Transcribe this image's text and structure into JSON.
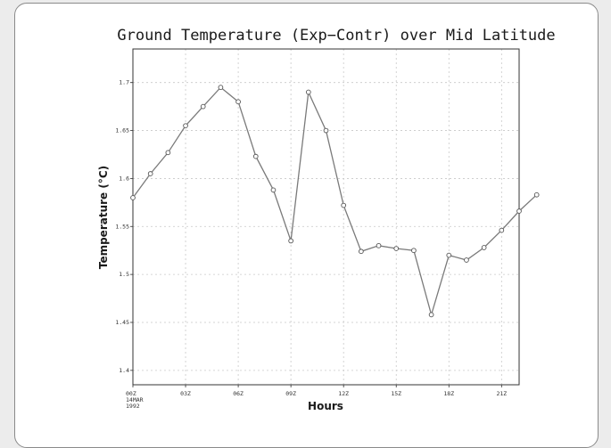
{
  "chart_data": {
    "type": "line",
    "title": "Ground Temperature (Exp−Contr) over Mid Latitude",
    "xlabel": "Hours",
    "ylabel": "Temperature (°C)",
    "x_tick_labels": [
      "00Z",
      "03Z",
      "06Z",
      "09Z",
      "12Z",
      "15Z",
      "18Z",
      "21Z"
    ],
    "x_tick_sublabels": [
      "14MAR",
      "1992"
    ],
    "y_tick_labels": [
      "1.4",
      "1.45",
      "1.5",
      "1.55",
      "1.6",
      "1.65",
      "1.7"
    ],
    "ylim": [
      1.385,
      1.735
    ],
    "x_steps": 22,
    "grid": true,
    "series": [
      {
        "values": [
          1.58,
          1.605,
          1.627,
          1.655,
          1.675,
          1.695,
          1.68,
          1.623,
          1.588,
          1.535,
          1.69,
          1.65,
          1.572,
          1.524,
          1.53,
          1.527,
          1.525,
          1.458,
          1.52,
          1.515,
          1.528,
          1.546,
          1.566,
          1.583
        ]
      }
    ],
    "colors": {
      "line": "#7a7a7a",
      "marker_edge": "#555555",
      "grid": "#c8c8c8",
      "frame": "#333333"
    }
  }
}
